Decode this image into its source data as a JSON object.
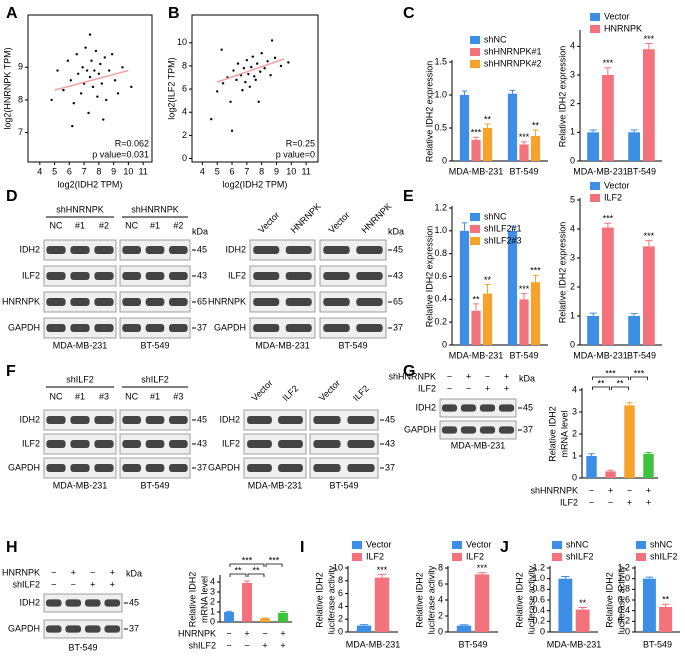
{
  "panel_labels": [
    "A",
    "B",
    "C",
    "D",
    "E",
    "F",
    "G",
    "H",
    "I",
    "J"
  ],
  "chart_data": [
    {
      "type": "scatter",
      "xlabel": "log2(IDH2 TPM)",
      "ylabel": "log2(HNRNPK TPM)",
      "x": [
        5.2,
        5.6,
        5.9,
        6.1,
        6.3,
        6.5,
        6.6,
        6.8,
        6.9,
        7.0,
        7.1,
        7.2,
        7.3,
        7.4,
        7.5,
        7.6,
        7.7,
        7.8,
        7.9,
        8.0,
        8.1,
        8.2,
        8.4,
        8.5,
        8.7,
        8.9,
        9.1,
        9.3,
        9.6,
        10.2,
        4.8,
        6.2,
        7.4,
        8.3
      ],
      "y": [
        8.9,
        8.3,
        9.2,
        8.6,
        7.9,
        9.4,
        8.8,
        8.2,
        9.0,
        8.5,
        9.6,
        8.9,
        7.6,
        8.7,
        9.2,
        8.4,
        8.9,
        9.5,
        8.1,
        8.8,
        9.1,
        8.5,
        9.3,
        8.0,
        8.9,
        9.4,
        8.6,
        8.2,
        9.0,
        8.4,
        8.0,
        7.2,
        10.0,
        7.4
      ],
      "fit": {
        "x": [
          5.0,
          10.0
        ],
        "y": [
          8.3,
          8.9
        ]
      },
      "xlim": [
        3.2,
        11.6
      ],
      "ylim": [
        6.1,
        10.6
      ],
      "xticks": [
        4,
        5,
        6,
        7,
        8,
        9,
        10,
        11
      ],
      "yticks": [
        7,
        8,
        9
      ],
      "annotations": [
        "R=0.062",
        "p value=0.031"
      ],
      "color": "#000000",
      "fit_color": "#f4a0a0"
    },
    {
      "type": "scatter",
      "xlabel": "log2(IDH2 TPM)",
      "ylabel": "log2(ILF2 TPM)",
      "x": [
        4.6,
        5.0,
        5.4,
        5.7,
        5.9,
        6.1,
        6.3,
        6.4,
        6.6,
        6.7,
        6.8,
        6.9,
        7.0,
        7.1,
        7.2,
        7.3,
        7.4,
        7.5,
        7.6,
        7.7,
        7.9,
        8.0,
        8.2,
        8.4,
        8.6,
        8.9,
        9.3,
        9.8,
        6.0,
        7.8,
        5.3,
        8.7
      ],
      "y": [
        3.4,
        5.8,
        6.5,
        7.0,
        4.9,
        7.6,
        6.8,
        8.2,
        7.2,
        5.9,
        7.8,
        6.6,
        8.5,
        7.3,
        6.2,
        7.9,
        8.8,
        7.1,
        6.8,
        8.2,
        7.5,
        9.1,
        7.8,
        8.4,
        7.2,
        8.7,
        8.0,
        8.3,
        2.4,
        4.9,
        9.4,
        10.2
      ],
      "fit": {
        "x": [
          5.0,
          9.5
        ],
        "y": [
          6.6,
          8.6
        ]
      },
      "xlim": [
        3.3,
        11.8
      ],
      "ylim": [
        -0.3,
        12.4
      ],
      "xticks": [
        4,
        5,
        6,
        7,
        8,
        9,
        10,
        11
      ],
      "yticks": [
        0,
        2,
        4,
        6,
        8,
        10
      ],
      "annotations": [
        "R=0.25",
        "p value=0"
      ],
      "color": "#000000",
      "fit_color": "#f4a0a0"
    },
    {
      "type": "bar",
      "ylabel": [
        "Relative IDH2 expression"
      ],
      "categories": [
        "MDA-MB-231",
        "BT-549"
      ],
      "ylim": [
        0,
        1.5
      ],
      "yticks": [
        0,
        0.5,
        {
          "value": 1,
          "label": "1.0"
        },
        1.5
      ],
      "series": [
        {
          "name": "shNC",
          "color": "#3d8fe6",
          "values": [
            1.0,
            1.02
          ],
          "errors": [
            0.06,
            0.05
          ]
        },
        {
          "name": "shHNRNPK#1",
          "color": "#f4727c",
          "values": [
            0.32,
            0.25
          ],
          "errors": [
            0.04,
            0.04
          ],
          "annotations": [
            "***",
            "***"
          ]
        },
        {
          "name": "shHNRNPK#2",
          "color": "#f7a22c",
          "values": [
            0.5,
            0.38
          ],
          "errors": [
            0.06,
            0.09
          ],
          "annotations": [
            "**",
            "**"
          ]
        }
      ]
    },
    {
      "type": "bar",
      "ylabel": [
        "Relative IDH2 expression"
      ],
      "categories": [
        "MDA-MB-231",
        "BT-549"
      ],
      "ylim": [
        0,
        4.5
      ],
      "yticks": [
        0,
        1,
        2,
        3,
        4
      ],
      "series": [
        {
          "name": "Vector",
          "color": "#3d8fe6",
          "values": [
            1,
            1
          ],
          "errors": [
            0.08,
            0.08
          ]
        },
        {
          "name": "HNRNPK",
          "color": "#f4727c",
          "values": [
            3.0,
            3.9
          ],
          "errors": [
            0.25,
            0.2
          ],
          "annotations": [
            "***",
            "***"
          ]
        }
      ]
    },
    {
      "type": "bar",
      "ylabel": [
        "Relative IDH2 expression"
      ],
      "categories": [
        "MDA-MB-231",
        "BT-549"
      ],
      "ylim": [
        0,
        1.2
      ],
      "yticks": [
        0,
        0.2,
        0.4,
        0.6,
        0.8,
        {
          "value": 1,
          "label": "1.0"
        },
        1.2
      ],
      "series": [
        {
          "name": "shNC",
          "color": "#3d8fe6",
          "values": [
            1,
            1
          ],
          "errors": [
            0.07,
            0.04
          ]
        },
        {
          "name": "shILF2#1",
          "color": "#f4727c",
          "values": [
            0.3,
            0.4
          ],
          "errors": [
            0.06,
            0.05
          ],
          "annotations": [
            "**",
            "***"
          ]
        },
        {
          "name": "shILF2#3",
          "color": "#f7a22c",
          "values": [
            0.45,
            0.55
          ],
          "errors": [
            0.08,
            0.06
          ],
          "annotations": [
            "**",
            "***"
          ]
        }
      ]
    },
    {
      "type": "bar",
      "ylabel": [
        "Relative IDH2 expression"
      ],
      "categories": [
        "MDA-MB-231",
        "BT-549"
      ],
      "ylim": [
        0,
        5
      ],
      "yticks": [
        0,
        1,
        2,
        3,
        4,
        5
      ],
      "series": [
        {
          "name": "Vector",
          "color": "#3d8fe6",
          "values": [
            1,
            1
          ],
          "errors": [
            0.1,
            0.08
          ]
        },
        {
          "name": "ILF2",
          "color": "#f4727c",
          "values": [
            4.05,
            3.4
          ],
          "errors": [
            0.15,
            0.2
          ],
          "annotations": [
            "***",
            "***"
          ]
        }
      ]
    },
    {
      "type": "bar",
      "ylabel": [
        "Relative IDH2",
        "mRNA level"
      ],
      "ylim": [
        0,
        4
      ],
      "yticks": [
        0,
        1,
        2,
        3,
        4
      ],
      "values": [
        1,
        0.3,
        3.3,
        1.1
      ],
      "errors": [
        0.1,
        0.05,
        0.12,
        0.06
      ],
      "colors": [
        "#3d8fe6",
        "#f4727c",
        "#f7a22c",
        "#3cc43c"
      ],
      "conditions": [
        {
          "name": "shHNRNPK",
          "signs": [
            "−",
            "+",
            "−",
            "+"
          ]
        },
        {
          "name": "ILF2",
          "signs": [
            "−",
            "−",
            "+",
            "+"
          ]
        }
      ],
      "significance": [
        "***",
        "***",
        "**",
        "**"
      ]
    },
    {
      "type": "bar",
      "ylabel": [
        "Relative IDH2",
        "mRNA level"
      ],
      "ylim": [
        0,
        4.5
      ],
      "yticks": [
        0,
        1,
        2,
        3,
        4
      ],
      "values": [
        1,
        3.9,
        0.35,
        0.9
      ],
      "errors": [
        0.08,
        0.2,
        0.05,
        0.15
      ],
      "colors": [
        "#3d8fe6",
        "#f4727c",
        "#f7a22c",
        "#3cc43c"
      ],
      "conditions": [
        {
          "name": "HNRNPK",
          "signs": [
            "−",
            "+",
            "−",
            "+"
          ]
        },
        {
          "name": "shILF2",
          "signs": [
            "−",
            "−",
            "+",
            "+"
          ]
        }
      ],
      "significance": [
        "***",
        "***",
        "**",
        "**"
      ]
    },
    {
      "type": "bar",
      "ylabel": [
        "Relative IDH2",
        "luciferase activity"
      ],
      "categories": [
        "MDA-MB-231"
      ],
      "ylim": [
        0,
        10
      ],
      "yticks": [
        0,
        2,
        4,
        6,
        8,
        10
      ],
      "series": [
        {
          "name": "Vector",
          "color": "#3d8fe6",
          "values": [
            1
          ],
          "errors": [
            0.15
          ]
        },
        {
          "name": "ILF2",
          "color": "#f4727c",
          "values": [
            8.5
          ],
          "errors": [
            0.5
          ],
          "annotations": [
            "***"
          ]
        }
      ]
    },
    {
      "type": "bar",
      "ylabel": [
        "Relative IDH2",
        "luciferase activity"
      ],
      "categories": [
        "BT-549"
      ],
      "ylim": [
        0,
        8
      ],
      "yticks": [
        0,
        2,
        4,
        6,
        8
      ],
      "series": [
        {
          "name": "Vector",
          "color": "#3d8fe6",
          "values": [
            0.8
          ],
          "errors": [
            0.1
          ]
        },
        {
          "name": "ILF2",
          "color": "#f4727c",
          "values": [
            7.2
          ],
          "errors": [
            0.2
          ],
          "annotations": [
            "***"
          ]
        }
      ]
    },
    {
      "type": "bar",
      "ylabel": [
        "Relative IDH2",
        "luciferase activity"
      ],
      "categories": [
        "MDA-MB-231"
      ],
      "ylim": [
        0,
        1.2
      ],
      "yticks": [
        0,
        0.2,
        0.4,
        0.6,
        0.8,
        {
          "value": 1,
          "label": "1.0"
        },
        1.2
      ],
      "series": [
        {
          "name": "shNC",
          "color": "#3d8fe6",
          "values": [
            1
          ],
          "errors": [
            0.04
          ]
        },
        {
          "name": "shILF2",
          "color": "#f4727c",
          "values": [
            0.42
          ],
          "errors": [
            0.04
          ],
          "annotations": [
            "**"
          ]
        }
      ]
    },
    {
      "type": "bar",
      "ylabel": [
        "Relative IDH2",
        "luciferase activity"
      ],
      "categories": [
        "BT-549"
      ],
      "ylim": [
        0,
        1.2
      ],
      "yticks": [
        0,
        0.2,
        0.4,
        0.6,
        0.8,
        {
          "value": 1,
          "label": "1.0"
        },
        1.2
      ],
      "series": [
        {
          "name": "shNC",
          "color": "#3d8fe6",
          "values": [
            1
          ],
          "errors": [
            0.03
          ]
        },
        {
          "name": "shILF2",
          "color": "#f4727c",
          "values": [
            0.47
          ],
          "errors": [
            0.05
          ],
          "annotations": [
            "**"
          ]
        }
      ]
    }
  ],
  "blots": [
    {
      "groups": [
        {
          "header": "shHNRNPK",
          "lanes": [
            "NC",
            "#1",
            "#2"
          ],
          "cell": "MDA-MB-231"
        },
        {
          "header": "shHNRNPK",
          "lanes": [
            "NC",
            "#1",
            "#2"
          ],
          "cell": "BT-549"
        }
      ],
      "rows": [
        "IDH2",
        "ILF2",
        "HNRNPK",
        "GAPDH"
      ],
      "kda": [
        "45",
        "43",
        "65",
        "37"
      ],
      "unit": "kDa"
    },
    {
      "groups": [
        {
          "lanes": [
            "Vector",
            "HNRNPK"
          ],
          "cell": "MDA-MB-231"
        },
        {
          "lanes": [
            "Vector",
            "HNRNPK"
          ],
          "cell": "BT-549"
        }
      ],
      "rows": [
        "IDH2",
        "ILF2",
        "HNRNPK",
        "GAPDH"
      ],
      "kda": [
        "45",
        "43",
        "65",
        "37"
      ],
      "unit": "kDa"
    },
    {
      "groups": [
        {
          "header": "shILF2",
          "lanes": [
            "NC",
            "#1",
            "#3"
          ],
          "cell": "MDA-MB-231"
        },
        {
          "header": "shILF2",
          "lanes": [
            "NC",
            "#1",
            "#3"
          ],
          "cell": "BT-549"
        }
      ],
      "rows": [
        "IDH2",
        "ILF2",
        "GAPDH"
      ],
      "kda": [
        "45",
        "43",
        "37"
      ]
    },
    {
      "groups": [
        {
          "lanes": [
            "Vector",
            "ILF2"
          ],
          "cell": "MDA-MB-231"
        },
        {
          "lanes": [
            "Vector",
            "ILF2"
          ],
          "cell": "BT-549"
        }
      ],
      "rows": [
        "IDH2",
        "ILF2",
        "GAPDH"
      ],
      "kda": [
        "45",
        "43",
        "37"
      ]
    },
    {
      "treatments": [
        {
          "name": "shHNRNPK",
          "signs": [
            "−",
            "+",
            "−",
            "+"
          ]
        },
        {
          "name": "ILF2",
          "signs": [
            "−",
            "−",
            "+",
            "+"
          ]
        }
      ],
      "groups": [
        {
          "cell": "MDA-MB-231"
        }
      ],
      "rows": [
        "IDH2",
        "GAPDH"
      ],
      "kda": [
        "45",
        "37"
      ],
      "unit": "kDa"
    },
    {
      "treatments": [
        {
          "name": "HNRNPK",
          "signs": [
            "−",
            "+",
            "−",
            "+"
          ]
        },
        {
          "name": "shILF2",
          "signs": [
            "−",
            "−",
            "+",
            "+"
          ]
        }
      ],
      "groups": [
        {
          "cell": "BT-549"
        }
      ],
      "rows": [
        "IDH2",
        "GAPDH"
      ],
      "kda": [
        "45",
        "37"
      ],
      "unit": "kDa"
    }
  ]
}
